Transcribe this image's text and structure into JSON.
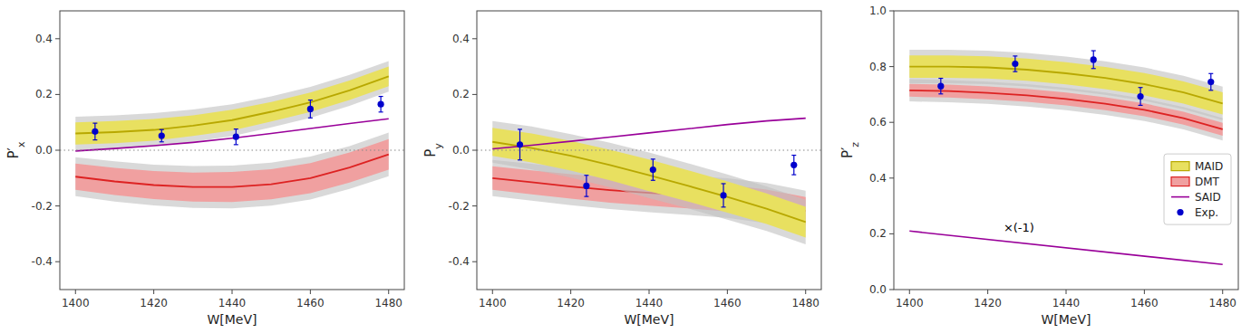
{
  "chart_data": [
    {
      "type": "line",
      "x": [
        1400,
        1410,
        1420,
        1430,
        1440,
        1450,
        1460,
        1470,
        1480
      ],
      "xlim": [
        1396,
        1484
      ],
      "xticks": [
        1400,
        1420,
        1440,
        1460,
        1480
      ],
      "ylim": [
        -0.5,
        0.5
      ],
      "yticks": [
        -0.4,
        -0.2,
        {
          "value": 0,
          "label": "0.0"
        },
        0.2,
        0.4
      ],
      "xlabel": "W[MeV]",
      "ylabel": "P′x",
      "grid": false,
      "hlines": [
        0
      ],
      "series": [
        {
          "type": "band",
          "colors": [
            "#b8a800",
            "#e8e060",
            "#c0c0c0"
          ],
          "values": [
            0.06,
            0.065,
            0.073,
            0.088,
            0.108,
            0.138,
            0.172,
            0.215,
            0.265
          ],
          "upper": [
            0.1,
            0.105,
            0.112,
            0.125,
            0.145,
            0.173,
            0.207,
            0.25,
            0.3
          ],
          "lower": [
            0.02,
            0.025,
            0.034,
            0.051,
            0.071,
            0.103,
            0.137,
            0.18,
            0.23
          ],
          "outer_upper": [
            0.12,
            0.125,
            0.133,
            0.146,
            0.165,
            0.193,
            0.227,
            0.27,
            0.32
          ],
          "outer_lower": [
            0.0,
            0.005,
            0.013,
            0.03,
            0.05,
            0.082,
            0.116,
            0.159,
            0.21
          ]
        },
        {
          "type": "band",
          "colors": [
            "#dd2222",
            "#f0a0a0",
            "#c0c0c0"
          ],
          "values": [
            -0.095,
            -0.112,
            -0.125,
            -0.132,
            -0.132,
            -0.122,
            -0.1,
            -0.062,
            -0.015
          ],
          "upper": [
            -0.048,
            -0.063,
            -0.075,
            -0.08,
            -0.078,
            -0.068,
            -0.046,
            -0.008,
            0.04
          ],
          "lower": [
            -0.142,
            -0.161,
            -0.175,
            -0.184,
            -0.186,
            -0.176,
            -0.154,
            -0.116,
            -0.07
          ],
          "outer_upper": [
            -0.025,
            -0.04,
            -0.052,
            -0.057,
            -0.055,
            -0.045,
            -0.023,
            0.015,
            0.063
          ],
          "outer_lower": [
            -0.165,
            -0.184,
            -0.198,
            -0.207,
            -0.209,
            -0.199,
            -0.177,
            -0.139,
            -0.093
          ]
        },
        {
          "type": "line",
          "color": "#990099",
          "values": [
            -0.003,
            0.006,
            0.016,
            0.028,
            0.043,
            0.06,
            0.078,
            0.096,
            0.113
          ]
        },
        {
          "type": "scatter",
          "color": "#0000cc",
          "marker": "circle",
          "x": [
            1405,
            1422,
            1441,
            1460,
            1478
          ],
          "values": [
            0.067,
            0.052,
            0.048,
            0.148,
            0.165
          ],
          "errors": [
            0.03,
            0.022,
            0.028,
            0.032,
            0.028
          ]
        }
      ]
    },
    {
      "type": "line",
      "x": [
        1400,
        1410,
        1420,
        1430,
        1440,
        1450,
        1460,
        1470,
        1480
      ],
      "xlim": [
        1396,
        1484
      ],
      "xticks": [
        1400,
        1420,
        1440,
        1460,
        1480
      ],
      "ylim": [
        -0.5,
        0.5
      ],
      "yticks": [
        -0.4,
        -0.2,
        {
          "value": 0,
          "label": "0.0"
        },
        0.2,
        0.4
      ],
      "xlabel": "W[MeV]",
      "ylabel": "Py",
      "grid": false,
      "hlines": [
        0
      ],
      "series": [
        {
          "type": "band",
          "colors": [
            "#b8a800",
            "#e8e060",
            "#c0c0c0"
          ],
          "values": [
            0.03,
            0.008,
            -0.02,
            -0.053,
            -0.09,
            -0.128,
            -0.168,
            -0.21,
            -0.258
          ],
          "upper": [
            0.08,
            0.06,
            0.033,
            0.002,
            -0.033,
            -0.072,
            -0.112,
            -0.155,
            -0.203
          ],
          "lower": [
            -0.02,
            -0.044,
            -0.073,
            -0.108,
            -0.147,
            -0.184,
            -0.224,
            -0.265,
            -0.313
          ],
          "outer_upper": [
            0.105,
            0.085,
            0.058,
            0.027,
            -0.008,
            -0.047,
            -0.087,
            -0.13,
            -0.178
          ],
          "outer_lower": [
            -0.045,
            -0.069,
            -0.098,
            -0.133,
            -0.172,
            -0.209,
            -0.249,
            -0.29,
            -0.338
          ]
        },
        {
          "type": "band",
          "colors": [
            "#dd2222",
            "#f0a0a0",
            "#c0c0c0"
          ],
          "values": [
            -0.1,
            -0.115,
            -0.13,
            -0.143,
            -0.153,
            -0.162,
            -0.172,
            -0.19,
            -0.218
          ],
          "upper": [
            -0.058,
            -0.072,
            -0.086,
            -0.098,
            -0.107,
            -0.115,
            -0.124,
            -0.141,
            -0.168
          ],
          "lower": [
            -0.142,
            -0.158,
            -0.174,
            -0.188,
            -0.199,
            -0.209,
            -0.22,
            -0.239,
            -0.268
          ],
          "outer_upper": [
            -0.035,
            -0.049,
            -0.063,
            -0.075,
            -0.084,
            -0.092,
            -0.101,
            -0.118,
            -0.145
          ],
          "outer_lower": [
            -0.165,
            -0.181,
            -0.197,
            -0.211,
            -0.222,
            -0.232,
            -0.243,
            -0.262,
            -0.291
          ]
        },
        {
          "type": "line",
          "color": "#990099",
          "values": [
            0.005,
            0.018,
            0.032,
            0.047,
            0.062,
            0.077,
            0.092,
            0.105,
            0.115
          ]
        },
        {
          "type": "scatter",
          "color": "#0000cc",
          "marker": "circle",
          "x": [
            1407,
            1424,
            1441,
            1459,
            1477
          ],
          "values": [
            0.02,
            -0.128,
            -0.07,
            -0.162,
            -0.053
          ],
          "errors": [
            0.055,
            0.038,
            0.038,
            0.042,
            0.035
          ]
        }
      ]
    },
    {
      "type": "line",
      "x": [
        1400,
        1410,
        1420,
        1430,
        1440,
        1450,
        1460,
        1470,
        1480
      ],
      "xlim": [
        1396,
        1484
      ],
      "xticks": [
        1400,
        1420,
        1440,
        1460,
        1480
      ],
      "ylim": [
        0.0,
        1.0
      ],
      "yticks": [
        {
          "value": 0,
          "label": "0.0"
        },
        0.2,
        0.4,
        0.6,
        0.8,
        {
          "value": 1,
          "label": "1.0"
        }
      ],
      "xlabel": "W[MeV]",
      "ylabel": "P′z",
      "grid": false,
      "legend": "right",
      "annotations": [
        "×(-1)"
      ],
      "series": [
        {
          "name": "MAID",
          "type": "band",
          "colors": [
            "#b8a800",
            "#e8e060",
            "#c0c0c0"
          ],
          "values": [
            0.8,
            0.8,
            0.797,
            0.789,
            0.776,
            0.759,
            0.737,
            0.707,
            0.668
          ],
          "upper": [
            0.84,
            0.84,
            0.837,
            0.829,
            0.816,
            0.799,
            0.777,
            0.747,
            0.708
          ],
          "lower": [
            0.76,
            0.76,
            0.757,
            0.749,
            0.736,
            0.719,
            0.697,
            0.667,
            0.628
          ],
          "outer_upper": [
            0.86,
            0.86,
            0.857,
            0.849,
            0.836,
            0.819,
            0.797,
            0.767,
            0.728
          ],
          "outer_lower": [
            0.74,
            0.74,
            0.737,
            0.729,
            0.716,
            0.699,
            0.677,
            0.647,
            0.608
          ]
        },
        {
          "name": "DMT",
          "type": "band",
          "colors": [
            "#dd2222",
            "#f0a0a0",
            "#c0c0c0"
          ],
          "values": [
            0.715,
            0.712,
            0.706,
            0.697,
            0.684,
            0.667,
            0.645,
            0.615,
            0.575
          ],
          "upper": [
            0.738,
            0.735,
            0.729,
            0.72,
            0.707,
            0.69,
            0.668,
            0.638,
            0.598
          ],
          "lower": [
            0.692,
            0.689,
            0.683,
            0.674,
            0.661,
            0.644,
            0.622,
            0.592,
            0.552
          ],
          "outer_upper": [
            0.755,
            0.752,
            0.746,
            0.737,
            0.724,
            0.707,
            0.685,
            0.655,
            0.615
          ],
          "outer_lower": [
            0.675,
            0.672,
            0.666,
            0.657,
            0.644,
            0.627,
            0.605,
            0.575,
            0.535
          ]
        },
        {
          "name": "SAID",
          "type": "line",
          "color": "#990099",
          "x": [
            1400,
            1480
          ],
          "values": [
            0.21,
            0.09
          ]
        },
        {
          "name": "Exp.",
          "type": "scatter",
          "color": "#0000cc",
          "marker": "circle",
          "x": [
            1408,
            1427,
            1447,
            1459,
            1477
          ],
          "values": [
            0.73,
            0.81,
            0.825,
            0.693,
            0.745
          ],
          "errors": [
            0.028,
            0.028,
            0.032,
            0.032,
            0.03
          ]
        }
      ]
    }
  ]
}
